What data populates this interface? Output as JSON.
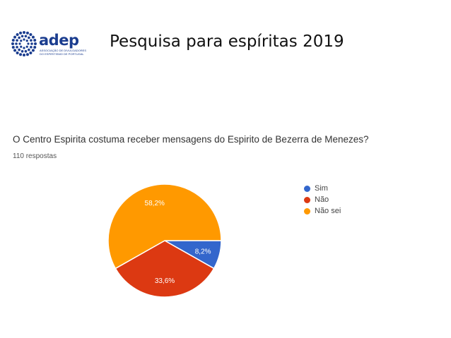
{
  "slide": {
    "title": "Pesquisa para espíritas  2019",
    "logo": {
      "name": "adep",
      "subtitle": "ASSOCIAÇÃO DE DIVULGADORES DO ESPIRITISMO DE PORTUGAL"
    }
  },
  "survey": {
    "question": "O Centro Espirita costuma receber mensagens do Espirito de Bezerra de Menezes?",
    "responses": "110 respostas"
  },
  "chart_data": {
    "type": "pie",
    "categories": [
      "Sim",
      "Não",
      "Não sei"
    ],
    "values": [
      8.2,
      33.6,
      58.2
    ],
    "labels": [
      "8,2%",
      "33,6%",
      "58,2%"
    ],
    "colors": [
      "#3366cc",
      "#dc3912",
      "#ff9900"
    ],
    "legend_position": "right"
  }
}
